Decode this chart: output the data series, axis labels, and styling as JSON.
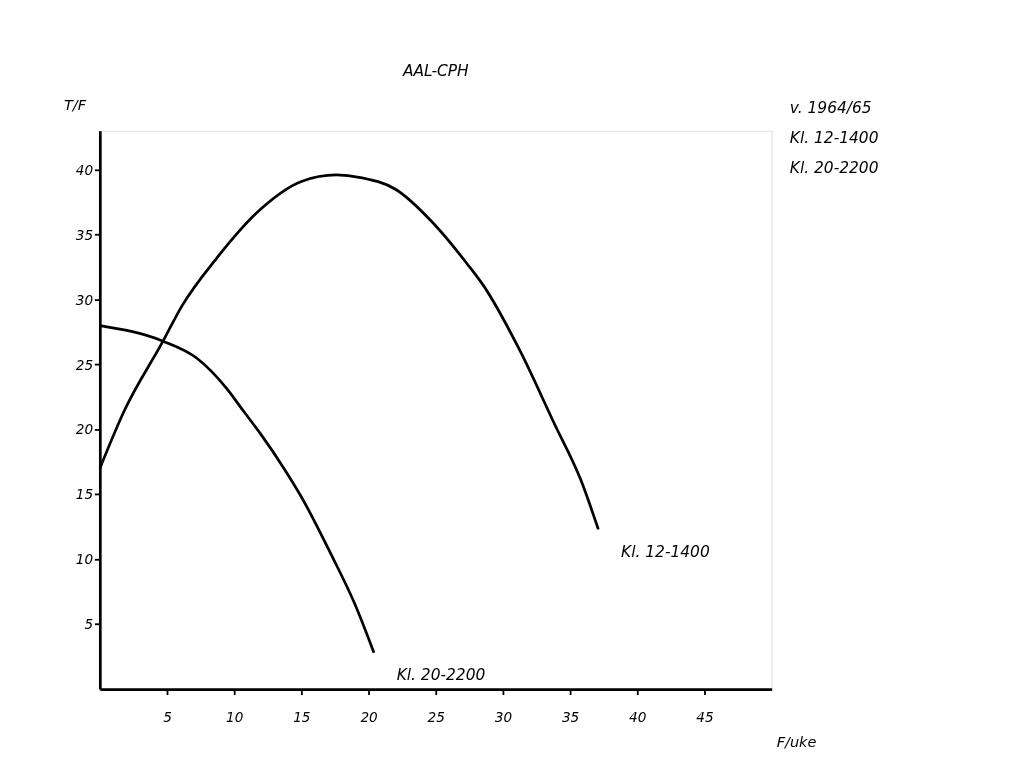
{
  "chart_data": {
    "type": "line",
    "title": "AAL-CPH",
    "xlabel": "F/uke",
    "ylabel": "T/F",
    "annotations": [
      "v. 1964/65",
      "Kl. 12-1400",
      "Kl. 20-2200"
    ],
    "xlim": [
      0,
      50
    ],
    "ylim": [
      0,
      43
    ],
    "xticks": [
      5,
      10,
      15,
      20,
      25,
      30,
      35,
      40,
      45
    ],
    "yticks": [
      5,
      10,
      15,
      20,
      25,
      30,
      35,
      40
    ],
    "grid": false,
    "marker": "none",
    "line_style": "solid",
    "series": [
      {
        "name": "Kl. 12-1400",
        "color": "#000000",
        "x": [
          0,
          1.8,
          4.7,
          6.1,
          8.7,
          12.0,
          15.0,
          17.6,
          19.4,
          22.0,
          24.8,
          27.3,
          28.6,
          31.2,
          33.8,
          35.8,
          37.1
        ],
        "values": [
          17.0,
          21.4,
          26.8,
          29.5,
          33.2,
          37.0,
          39.1,
          39.6,
          39.4,
          38.5,
          35.9,
          32.8,
          31.0,
          26.2,
          20.5,
          16.1,
          12.3
        ]
      },
      {
        "name": "Kl. 20-2200",
        "color": "#000000",
        "x": [
          0,
          4.7,
          7.2,
          9.4,
          10.7,
          12.0,
          13.7,
          15.0,
          17.2,
          19.0,
          20.4
        ],
        "values": [
          28.0,
          26.8,
          25.5,
          23.2,
          21.4,
          19.6,
          17.0,
          14.8,
          10.4,
          6.5,
          2.8
        ]
      }
    ]
  }
}
